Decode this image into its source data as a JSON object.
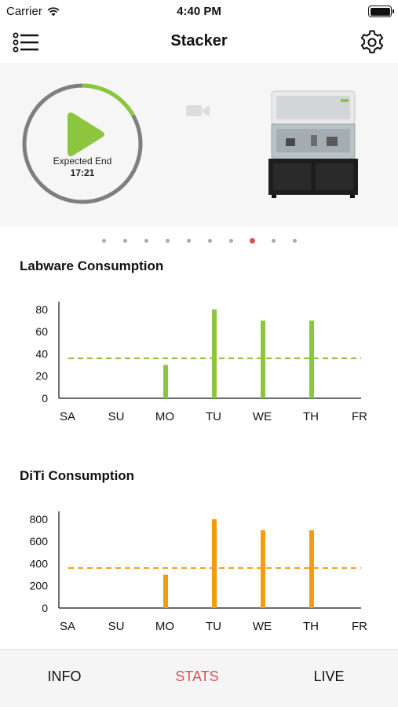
{
  "status_bar": {
    "carrier": "Carrier",
    "time": "4:40 PM"
  },
  "nav": {
    "title": "Stacker",
    "menu_icon": "list-icon",
    "settings_icon": "gear-icon"
  },
  "hero": {
    "expected_end_label": "Expected End",
    "expected_end_time": "17:21",
    "progress_fraction": 0.17,
    "colors": {
      "accent": "#8cc63f",
      "ring_track": "#7f7f7f"
    }
  },
  "page_indicator": {
    "count": 10,
    "active_index": 7
  },
  "sections": [
    {
      "title": "Labware Consumption"
    },
    {
      "title": "DiTi Consumption"
    }
  ],
  "chart_data": [
    {
      "type": "bar",
      "title": "Labware Consumption",
      "categories": [
        "SA",
        "SU",
        "MO",
        "TU",
        "WE",
        "TH",
        "FR"
      ],
      "values": [
        0,
        0,
        30,
        80,
        70,
        70,
        0
      ],
      "yticks": [
        0,
        20,
        40,
        60,
        80
      ],
      "ylim": [
        0,
        87
      ],
      "average_line": 36,
      "color": "#8cc63f",
      "grid": false
    },
    {
      "type": "bar",
      "title": "DiTi Consumption",
      "categories": [
        "SA",
        "SU",
        "MO",
        "TU",
        "WE",
        "TH",
        "FR"
      ],
      "values": [
        0,
        0,
        300,
        800,
        700,
        700,
        0
      ],
      "yticks": [
        0,
        200,
        400,
        600,
        800
      ],
      "ylim": [
        0,
        870
      ],
      "average_line": 360,
      "color": "#f39c12",
      "grid": false
    }
  ],
  "tab_bar": {
    "tabs": [
      {
        "label": "INFO",
        "active": false
      },
      {
        "label": "STATS",
        "active": true
      },
      {
        "label": "LIVE",
        "active": false
      }
    ],
    "active_color": "#d9534f",
    "inactive_color": "#111111"
  }
}
